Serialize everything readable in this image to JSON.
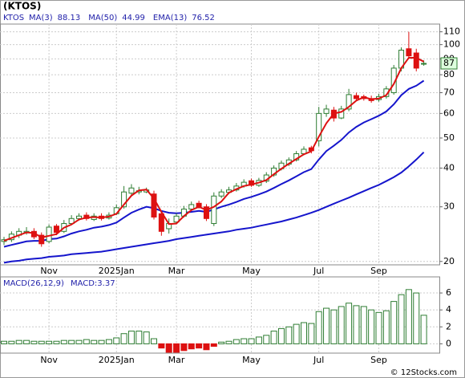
{
  "title": "(KTOS)",
  "symbol": "KTOS",
  "footer": "© 12Stocks.com",
  "chart_data": [
    {
      "type": "candlestick",
      "log": true,
      "grid": true,
      "categories": [
        null,
        null,
        null,
        null,
        null,
        null,
        "Nov",
        null,
        null,
        null,
        null,
        null,
        null,
        null,
        null,
        "2025Jan",
        null,
        null,
        null,
        null,
        null,
        null,
        null,
        "Mar",
        null,
        null,
        null,
        null,
        null,
        null,
        null,
        null,
        null,
        "May",
        null,
        null,
        null,
        null,
        null,
        null,
        null,
        null,
        "Jul",
        null,
        null,
        null,
        null,
        null,
        null,
        null,
        "Sep",
        null,
        null,
        null,
        null,
        null,
        null
      ],
      "open": [
        23.2,
        23.5,
        24.3,
        24.8,
        25,
        24.3,
        23.2,
        26,
        25,
        26.5,
        27.5,
        28.2,
        27.3,
        28,
        27.6,
        28.5,
        30,
        33.2,
        33.5,
        33.5,
        33,
        28.5,
        25.5,
        26.8,
        28,
        29.5,
        30.8,
        30,
        26.5,
        32.5,
        33.4,
        34,
        35,
        36.4,
        35.2,
        36.3,
        38,
        39.8,
        41.2,
        42.5,
        44.5,
        46.5,
        49,
        60,
        61.5,
        58,
        62,
        68.5,
        68,
        67,
        66.5,
        68,
        70,
        84,
        97,
        94,
        86.5
      ],
      "high": [
        24,
        25,
        25.6,
        25.8,
        25.6,
        24.8,
        26.3,
        26.4,
        27.2,
        28.2,
        28.6,
        28.8,
        28.6,
        28.6,
        28.8,
        30.5,
        35,
        35.5,
        34.8,
        34.6,
        33.8,
        29,
        27.5,
        28.6,
        30.2,
        31.2,
        31.4,
        30.6,
        33.4,
        34.2,
        34.8,
        35.8,
        36.8,
        37,
        37.2,
        38.8,
        40.8,
        42.3,
        43.3,
        45.4,
        47,
        47.2,
        63,
        64,
        63,
        63.5,
        72,
        70,
        69,
        68.5,
        69.5,
        73.5,
        86,
        98,
        110,
        97,
        89
      ],
      "low": [
        22.6,
        23.1,
        23.8,
        24.4,
        23.6,
        22.3,
        22.9,
        24.3,
        24.7,
        26.2,
        27.1,
        27.1,
        27,
        27.1,
        27.3,
        28.2,
        29.6,
        32.6,
        32.9,
        33.2,
        27.3,
        24.2,
        24.6,
        26.4,
        27.7,
        29.2,
        29.6,
        27,
        26,
        32,
        33,
        33.6,
        34.6,
        34.8,
        34.8,
        35.8,
        37.5,
        39.3,
        40.6,
        42,
        44,
        44.6,
        47,
        58.5,
        56.5,
        57.5,
        61,
        66,
        66,
        65,
        65.5,
        67,
        69,
        82,
        90,
        82,
        85.5
      ],
      "close": [
        23.5,
        24.5,
        25,
        25,
        24,
        22.8,
        25.8,
        24.8,
        26.5,
        27.5,
        28,
        27.5,
        28,
        27.5,
        28.2,
        29.8,
        33.5,
        34.5,
        33.8,
        34,
        27.8,
        25,
        26.5,
        28,
        29.5,
        30.5,
        30,
        27.5,
        32.5,
        33.5,
        34,
        35,
        36,
        35.2,
        36.5,
        38,
        40,
        41.5,
        42.5,
        44.5,
        46,
        45.5,
        60,
        62,
        58,
        62,
        69,
        67,
        67,
        66,
        68,
        72,
        84,
        96,
        92,
        84,
        87
      ],
      "up_color": "#2e7d32",
      "down_color": "#dd1111",
      "series": [
        {
          "name": "MA(3)",
          "color": "#dd1111",
          "values": [
            23.3,
            23.8,
            24.3,
            24.8,
            24.7,
            23.9,
            24.2,
            24.5,
            25.7,
            26.3,
            27.3,
            27.7,
            27.8,
            27.7,
            27.9,
            28.5,
            30.5,
            32.6,
            33.9,
            34.1,
            31.9,
            28.9,
            26.4,
            26.5,
            28,
            29.3,
            30,
            29.3,
            30,
            31.2,
            33.3,
            34.2,
            35,
            35.4,
            35.9,
            36.6,
            38.2,
            39.8,
            41.3,
            42.8,
            44.3,
            45.3,
            50.5,
            55.8,
            60,
            60.7,
            63,
            66,
            67.7,
            66.7,
            67,
            68.7,
            74.7,
            84,
            90.7,
            90.7,
            88.13
          ]
        },
        {
          "name": "MA(50)",
          "color": "#1515cc",
          "values": [
            19.8,
            20,
            20.1,
            20.3,
            20.4,
            20.5,
            20.7,
            20.8,
            20.9,
            21.1,
            21.2,
            21.3,
            21.4,
            21.5,
            21.7,
            21.9,
            22.1,
            22.3,
            22.5,
            22.7,
            22.9,
            23.1,
            23.3,
            23.6,
            23.8,
            24,
            24.2,
            24.4,
            24.6,
            24.8,
            25,
            25.3,
            25.5,
            25.7,
            26,
            26.3,
            26.6,
            26.9,
            27.3,
            27.7,
            28.2,
            28.7,
            29.3,
            30,
            30.7,
            31.4,
            32.1,
            32.9,
            33.7,
            34.5,
            35.3,
            36.3,
            37.4,
            38.7,
            40.5,
            42.6,
            44.99
          ]
        },
        {
          "name": "EMA(13)",
          "color": "#1515cc",
          "values": [
            22.3,
            22.6,
            22.9,
            23.2,
            23.3,
            23.3,
            23.6,
            23.7,
            24.1,
            24.6,
            25,
            25.3,
            25.7,
            25.9,
            26.2,
            26.7,
            27.7,
            28.7,
            29.4,
            30,
            29.7,
            29.1,
            28.7,
            28.6,
            28.7,
            28.9,
            29.1,
            28.9,
            29.4,
            30,
            30.5,
            31.1,
            31.8,
            32.3,
            32.9,
            33.6,
            34.5,
            35.5,
            36.5,
            37.6,
            38.8,
            39.7,
            42.6,
            45.4,
            47.2,
            49.3,
            52.1,
            54.3,
            56.1,
            57.5,
            59,
            60.9,
            64.2,
            68.7,
            72,
            73.7,
            76.52
          ]
        }
      ],
      "ylim": [
        19.5,
        116.5
      ],
      "yticks": [
        20,
        30,
        40,
        50,
        60,
        70,
        80,
        90,
        100,
        110
      ]
    },
    {
      "type": "bar",
      "title": "MACD(26,12,9)",
      "label": "MACD:3.37",
      "grid": true,
      "pos_color": "#2e7d32",
      "neg_color": "#dd1111",
      "values": [
        0.3,
        0.3,
        0.4,
        0.4,
        0.3,
        0.3,
        0.3,
        0.3,
        0.4,
        0.4,
        0.4,
        0.5,
        0.4,
        0.4,
        0.5,
        0.7,
        1.2,
        1.5,
        1.5,
        1.4,
        0.6,
        -0.5,
        -1.0,
        -1.0,
        -0.8,
        -0.6,
        -0.5,
        -0.7,
        -0.3,
        0.2,
        0.3,
        0.5,
        0.6,
        0.6,
        0.8,
        1.0,
        1.5,
        1.8,
        2.0,
        2.3,
        2.5,
        2.4,
        3.8,
        4.2,
        4.0,
        4.4,
        4.8,
        4.5,
        4.4,
        4.0,
        3.7,
        3.9,
        5.0,
        5.8,
        6.4,
        6.0,
        3.37
      ],
      "ylim": [
        -1.1,
        7.9
      ],
      "yticks": [
        0,
        2,
        4,
        6
      ]
    }
  ]
}
